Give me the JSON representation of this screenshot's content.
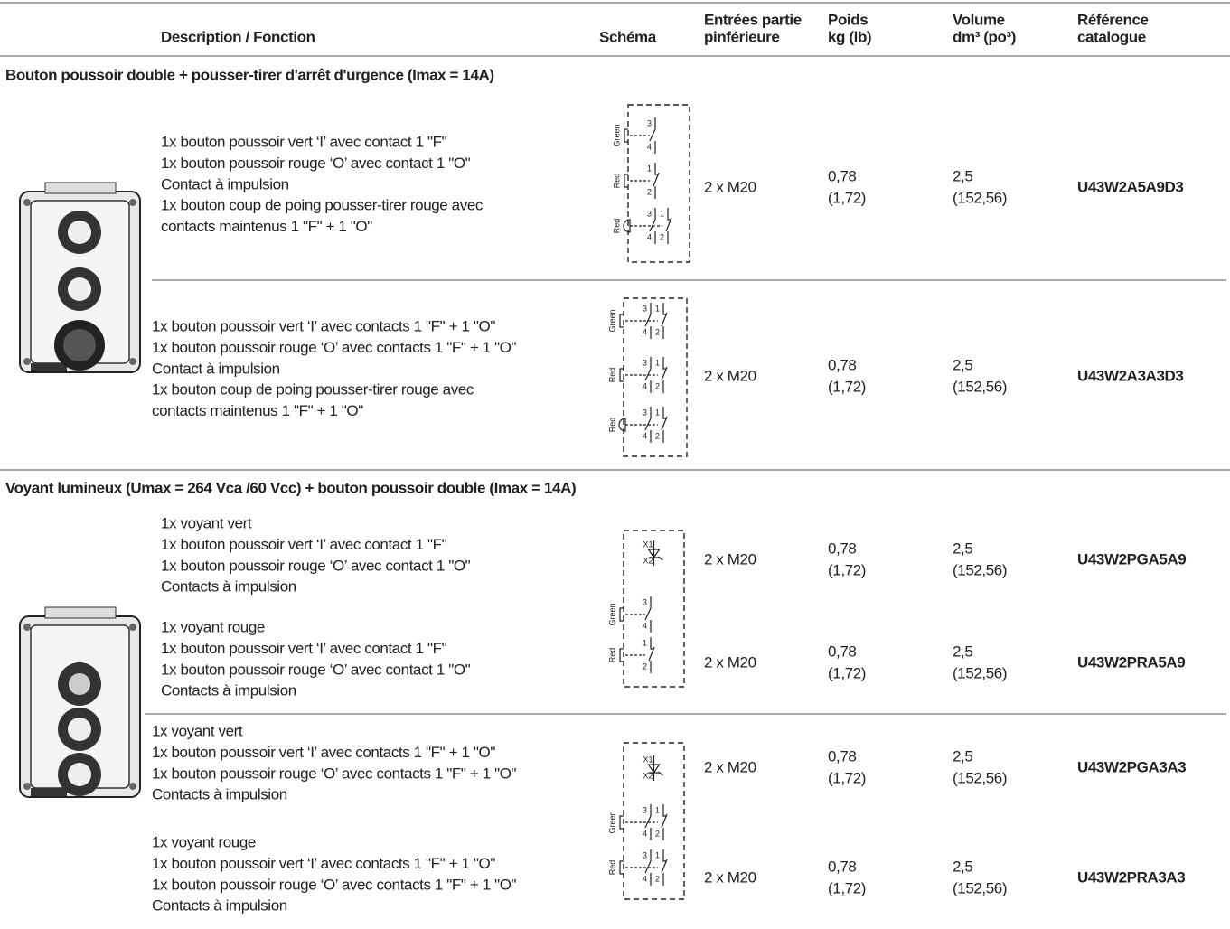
{
  "header": {
    "columns": [
      [
        "Description / Fonction"
      ],
      [
        "Schéma"
      ],
      [
        "Entrées partie",
        "pinférieure"
      ],
      [
        "Poids",
        "kg (lb)"
      ],
      [
        "Volume",
        "dm³ (po³)"
      ],
      [
        "Référence",
        "catalogue"
      ]
    ]
  },
  "sections": [
    {
      "title": "Bouton poussoir double + pousser-tirer d'arrêt d'urgence (Imax = 14A)",
      "schemas": [
        {
          "rows": [
            {
              "label": "Green",
              "contacts": [
                {
                  "top": "3",
                  "bottom": "4"
                }
              ]
            },
            {
              "label": "Red",
              "contacts": [
                {
                  "top": "1",
                  "bottom": "2"
                }
              ]
            },
            {
              "label": "Red",
              "contacts": [
                {
                  "top": "3",
                  "bottom": "4"
                },
                {
                  "top": "1",
                  "bottom": "2"
                }
              ]
            }
          ]
        },
        {
          "rows": [
            {
              "label": "Green",
              "contacts": [
                {
                  "top": "3",
                  "bottom": "4"
                },
                {
                  "top": "1",
                  "bottom": "2"
                }
              ]
            },
            {
              "label": "Red",
              "contacts": [
                {
                  "top": "3",
                  "bottom": "4"
                },
                {
                  "top": "1",
                  "bottom": "2"
                }
              ]
            },
            {
              "label": "Red",
              "contacts": [
                {
                  "top": "3",
                  "bottom": "4"
                },
                {
                  "top": "1",
                  "bottom": "2"
                }
              ]
            }
          ]
        }
      ],
      "products": [
        {
          "lines": [
            "1x bouton poussoir vert ‘I’ avec contact 1 \"F\"",
            "1x bouton poussoir rouge ‘O’ avec contact 1 \"O\"",
            "Contact à impulsion",
            "1x bouton coup de poing pousser-tirer rouge avec",
            "contacts maintenus 1 \"F\" + 1 \"O\""
          ],
          "entries": "2 x M20",
          "weight": [
            "0,78",
            "(1,72)"
          ],
          "volume": [
            "2,5",
            "(152,56)"
          ],
          "reference": "U43W2A5A9D3"
        },
        {
          "lines": [
            "1x bouton poussoir vert ‘I’ avec contacts 1 \"F\" + 1 \"O\"",
            "1x bouton poussoir rouge ‘O’ avec contacts 1 \"F\" + 1 \"O\"",
            "Contact à impulsion",
            "1x bouton coup de poing pousser-tirer rouge avec",
            "contacts maintenus 1 \"F\" + 1 \"O\""
          ],
          "entries": "2 x M20",
          "weight": [
            "0,78",
            "(1,72)"
          ],
          "volume": [
            "2,5",
            "(152,56)"
          ],
          "reference": "U43W2A3A3D3"
        }
      ]
    },
    {
      "title": "Voyant lumineux (Umax = 264 Vca /60 Vcc) + bouton poussoir double (Imax = 14A)",
      "schemas": [
        {
          "rows": [
            {
              "lamp": {
                "top": "X1",
                "bottom": "X2"
              }
            },
            {
              "label": "Green",
              "contacts": [
                {
                  "top": "3",
                  "bottom": "4"
                }
              ]
            },
            {
              "label": "Red",
              "contacts": [
                {
                  "top": "1",
                  "bottom": "2"
                }
              ]
            }
          ]
        },
        {
          "rows": [
            {
              "lamp": {
                "top": "X1",
                "bottom": "X2"
              }
            },
            {
              "label": "Green",
              "contacts": [
                {
                  "top": "3",
                  "bottom": "4"
                },
                {
                  "top": "1",
                  "bottom": "2"
                }
              ]
            },
            {
              "label": "Red",
              "contacts": [
                {
                  "top": "3",
                  "bottom": "4"
                },
                {
                  "top": "1",
                  "bottom": "2"
                }
              ]
            }
          ]
        }
      ],
      "products": [
        {
          "lines": [
            "1x voyant vert",
            "1x bouton poussoir vert ‘I’ avec contact 1 \"F\"",
            "1x bouton poussoir rouge ‘O’ avec contact 1 \"O\"",
            "Contacts à impulsion"
          ],
          "entries": "2 x M20",
          "weight": [
            "0,78",
            "(1,72)"
          ],
          "volume": [
            "2,5",
            "(152,56)"
          ],
          "reference": "U43W2PGA5A9"
        },
        {
          "lines": [
            "1x voyant rouge",
            "1x bouton poussoir vert ‘I’ avec contact 1 \"F\"",
            "1x bouton poussoir rouge ‘O’ avec contact 1 \"O\"",
            "Contacts à impulsion"
          ],
          "entries": "2 x M20",
          "weight": [
            "0,78",
            "(1,72)"
          ],
          "volume": [
            "2,5",
            "(152,56)"
          ],
          "reference": "U43W2PRA5A9"
        },
        {
          "lines": [
            "1x voyant vert",
            "1x bouton poussoir vert ‘I’ avec contacts 1 \"F\" + 1 \"O\"",
            "1x bouton poussoir rouge ‘O’ avec contacts 1 \"F\" + 1 \"O\"",
            "Contacts à impulsion"
          ],
          "entries": "2 x M20",
          "weight": [
            "0,78",
            "(1,72)"
          ],
          "volume": [
            "2,5",
            "(152,56)"
          ],
          "reference": "U43W2PGA3A3"
        },
        {
          "lines": [
            "1x voyant rouge",
            "1x bouton poussoir vert ‘I’ avec contacts 1 \"F\" + 1 \"O\"",
            "1x bouton poussoir rouge ‘O’ avec contacts 1 \"F\" + 1 \"O\"",
            "Contacts à impulsion"
          ],
          "entries": "2 x M20",
          "weight": [
            "0,78",
            "(1,72)"
          ],
          "volume": [
            "2,5",
            "(152,56)"
          ],
          "reference": "U43W2PRA3A3"
        }
      ]
    }
  ]
}
